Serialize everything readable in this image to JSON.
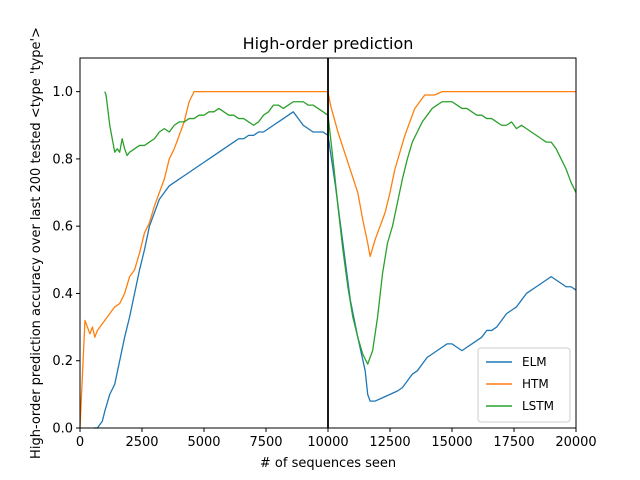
{
  "chart_data": {
    "type": "line",
    "title": "High-order prediction",
    "xlabel": "# of sequences seen",
    "ylabel": "High-order prediction accuracy over last 200 tested <type 'type'>",
    "xlim": [
      0,
      20000
    ],
    "ylim": [
      0,
      1.1
    ],
    "xticks": [
      0,
      2500,
      5000,
      7500,
      10000,
      12500,
      15000,
      17500,
      20000
    ],
    "yticks": [
      0.0,
      0.2,
      0.4,
      0.6,
      0.8,
      1.0
    ],
    "xtick_labels": [
      "0",
      "2500",
      "5000",
      "7500",
      "10000",
      "12500",
      "15000",
      "17500",
      "20000"
    ],
    "ytick_labels": [
      "0.0",
      "0.2",
      "0.4",
      "0.6",
      "0.8",
      "1.0"
    ],
    "grid": false,
    "legend_position": "lower-right",
    "vline_x": 10000,
    "series": [
      {
        "name": "ELM",
        "color": "#1f77b4",
        "points": [
          [
            550,
            0.0
          ],
          [
            700,
            0.0
          ],
          [
            900,
            0.02
          ],
          [
            1000,
            0.05
          ],
          [
            1200,
            0.1
          ],
          [
            1400,
            0.13
          ],
          [
            1600,
            0.2
          ],
          [
            1800,
            0.27
          ],
          [
            2000,
            0.33
          ],
          [
            2200,
            0.4
          ],
          [
            2400,
            0.47
          ],
          [
            2600,
            0.53
          ],
          [
            2800,
            0.6
          ],
          [
            3000,
            0.64
          ],
          [
            3200,
            0.68
          ],
          [
            3400,
            0.7
          ],
          [
            3600,
            0.72
          ],
          [
            3800,
            0.73
          ],
          [
            4000,
            0.74
          ],
          [
            4200,
            0.75
          ],
          [
            4400,
            0.76
          ],
          [
            4600,
            0.77
          ],
          [
            4800,
            0.78
          ],
          [
            5000,
            0.79
          ],
          [
            5200,
            0.8
          ],
          [
            5400,
            0.81
          ],
          [
            5600,
            0.82
          ],
          [
            5800,
            0.83
          ],
          [
            6000,
            0.84
          ],
          [
            6200,
            0.85
          ],
          [
            6400,
            0.86
          ],
          [
            6600,
            0.86
          ],
          [
            6800,
            0.87
          ],
          [
            7000,
            0.87
          ],
          [
            7200,
            0.88
          ],
          [
            7400,
            0.88
          ],
          [
            7600,
            0.89
          ],
          [
            7800,
            0.9
          ],
          [
            8000,
            0.91
          ],
          [
            8200,
            0.92
          ],
          [
            8400,
            0.93
          ],
          [
            8600,
            0.94
          ],
          [
            8800,
            0.92
          ],
          [
            9000,
            0.9
          ],
          [
            9200,
            0.89
          ],
          [
            9400,
            0.88
          ],
          [
            9600,
            0.88
          ],
          [
            9800,
            0.88
          ],
          [
            10000,
            0.87
          ],
          [
            10300,
            0.72
          ],
          [
            10600,
            0.55
          ],
          [
            10900,
            0.38
          ],
          [
            11200,
            0.27
          ],
          [
            11500,
            0.17
          ],
          [
            11600,
            0.1
          ],
          [
            11700,
            0.08
          ],
          [
            11900,
            0.08
          ],
          [
            12200,
            0.09
          ],
          [
            12500,
            0.1
          ],
          [
            12800,
            0.11
          ],
          [
            13000,
            0.12
          ],
          [
            13200,
            0.14
          ],
          [
            13400,
            0.16
          ],
          [
            13600,
            0.17
          ],
          [
            13800,
            0.19
          ],
          [
            14000,
            0.21
          ],
          [
            14200,
            0.22
          ],
          [
            14400,
            0.23
          ],
          [
            14600,
            0.24
          ],
          [
            14800,
            0.25
          ],
          [
            15000,
            0.25
          ],
          [
            15200,
            0.24
          ],
          [
            15400,
            0.23
          ],
          [
            15600,
            0.24
          ],
          [
            15800,
            0.25
          ],
          [
            16000,
            0.26
          ],
          [
            16200,
            0.27
          ],
          [
            16400,
            0.29
          ],
          [
            16600,
            0.29
          ],
          [
            16800,
            0.3
          ],
          [
            17000,
            0.32
          ],
          [
            17200,
            0.34
          ],
          [
            17400,
            0.35
          ],
          [
            17600,
            0.36
          ],
          [
            17800,
            0.38
          ],
          [
            18000,
            0.4
          ],
          [
            18200,
            0.41
          ],
          [
            18400,
            0.42
          ],
          [
            18600,
            0.43
          ],
          [
            18800,
            0.44
          ],
          [
            19000,
            0.45
          ],
          [
            19200,
            0.44
          ],
          [
            19400,
            0.43
          ],
          [
            19600,
            0.42
          ],
          [
            19800,
            0.42
          ],
          [
            20000,
            0.41
          ]
        ]
      },
      {
        "name": "HTM",
        "color": "#ff7f0e",
        "points": [
          [
            0,
            0.0
          ],
          [
            100,
            0.16
          ],
          [
            200,
            0.32
          ],
          [
            300,
            0.3
          ],
          [
            400,
            0.28
          ],
          [
            500,
            0.3
          ],
          [
            600,
            0.27
          ],
          [
            700,
            0.29
          ],
          [
            800,
            0.3
          ],
          [
            1000,
            0.32
          ],
          [
            1200,
            0.34
          ],
          [
            1400,
            0.36
          ],
          [
            1600,
            0.37
          ],
          [
            1800,
            0.4
          ],
          [
            2000,
            0.45
          ],
          [
            2200,
            0.47
          ],
          [
            2400,
            0.52
          ],
          [
            2600,
            0.58
          ],
          [
            2800,
            0.61
          ],
          [
            3000,
            0.66
          ],
          [
            3200,
            0.7
          ],
          [
            3400,
            0.74
          ],
          [
            3600,
            0.8
          ],
          [
            3800,
            0.83
          ],
          [
            4000,
            0.87
          ],
          [
            4200,
            0.91
          ],
          [
            4400,
            0.97
          ],
          [
            4600,
            1.0
          ],
          [
            6000,
            1.0
          ],
          [
            8000,
            1.0
          ],
          [
            10000,
            1.0
          ],
          [
            10100,
            0.96
          ],
          [
            10400,
            0.88
          ],
          [
            10800,
            0.79
          ],
          [
            11200,
            0.7
          ],
          [
            11400,
            0.62
          ],
          [
            11600,
            0.55
          ],
          [
            11700,
            0.51
          ],
          [
            11900,
            0.56
          ],
          [
            12100,
            0.6
          ],
          [
            12300,
            0.64
          ],
          [
            12500,
            0.7
          ],
          [
            12700,
            0.77
          ],
          [
            12900,
            0.82
          ],
          [
            13100,
            0.87
          ],
          [
            13300,
            0.91
          ],
          [
            13500,
            0.95
          ],
          [
            13700,
            0.97
          ],
          [
            13900,
            0.99
          ],
          [
            14100,
            0.99
          ],
          [
            14300,
            0.99
          ],
          [
            14600,
            1.0
          ],
          [
            16000,
            1.0
          ],
          [
            18000,
            1.0
          ],
          [
            20000,
            1.0
          ]
        ]
      },
      {
        "name": "LSTM",
        "color": "#2ca02c",
        "points": [
          [
            1000,
            1.0
          ],
          [
            1050,
            0.99
          ],
          [
            1100,
            0.96
          ],
          [
            1150,
            0.93
          ],
          [
            1200,
            0.9
          ],
          [
            1300,
            0.86
          ],
          [
            1400,
            0.82
          ],
          [
            1500,
            0.83
          ],
          [
            1600,
            0.82
          ],
          [
            1700,
            0.86
          ],
          [
            1800,
            0.83
          ],
          [
            1900,
            0.81
          ],
          [
            2000,
            0.82
          ],
          [
            2200,
            0.83
          ],
          [
            2400,
            0.84
          ],
          [
            2600,
            0.84
          ],
          [
            2800,
            0.85
          ],
          [
            3000,
            0.86
          ],
          [
            3200,
            0.88
          ],
          [
            3400,
            0.89
          ],
          [
            3600,
            0.88
          ],
          [
            3800,
            0.9
          ],
          [
            4000,
            0.91
          ],
          [
            4200,
            0.91
          ],
          [
            4400,
            0.92
          ],
          [
            4600,
            0.92
          ],
          [
            4800,
            0.93
          ],
          [
            5000,
            0.93
          ],
          [
            5200,
            0.94
          ],
          [
            5400,
            0.94
          ],
          [
            5600,
            0.95
          ],
          [
            5800,
            0.94
          ],
          [
            6000,
            0.93
          ],
          [
            6200,
            0.93
          ],
          [
            6400,
            0.92
          ],
          [
            6600,
            0.92
          ],
          [
            6800,
            0.91
          ],
          [
            7000,
            0.9
          ],
          [
            7200,
            0.91
          ],
          [
            7400,
            0.93
          ],
          [
            7600,
            0.94
          ],
          [
            7800,
            0.96
          ],
          [
            8000,
            0.96
          ],
          [
            8200,
            0.95
          ],
          [
            8400,
            0.96
          ],
          [
            8600,
            0.97
          ],
          [
            8800,
            0.97
          ],
          [
            9000,
            0.97
          ],
          [
            9200,
            0.96
          ],
          [
            9400,
            0.96
          ],
          [
            9600,
            0.95
          ],
          [
            9800,
            0.94
          ],
          [
            10000,
            0.93
          ],
          [
            10200,
            0.8
          ],
          [
            10400,
            0.66
          ],
          [
            10600,
            0.53
          ],
          [
            10800,
            0.42
          ],
          [
            11000,
            0.33
          ],
          [
            11200,
            0.27
          ],
          [
            11400,
            0.22
          ],
          [
            11600,
            0.19
          ],
          [
            11800,
            0.23
          ],
          [
            12000,
            0.33
          ],
          [
            12200,
            0.46
          ],
          [
            12400,
            0.55
          ],
          [
            12600,
            0.6
          ],
          [
            12800,
            0.67
          ],
          [
            13000,
            0.74
          ],
          [
            13200,
            0.8
          ],
          [
            13400,
            0.85
          ],
          [
            13600,
            0.88
          ],
          [
            13800,
            0.91
          ],
          [
            14000,
            0.93
          ],
          [
            14200,
            0.95
          ],
          [
            14400,
            0.96
          ],
          [
            14600,
            0.97
          ],
          [
            14800,
            0.97
          ],
          [
            15000,
            0.97
          ],
          [
            15200,
            0.96
          ],
          [
            15400,
            0.95
          ],
          [
            15600,
            0.95
          ],
          [
            15800,
            0.94
          ],
          [
            16000,
            0.93
          ],
          [
            16200,
            0.93
          ],
          [
            16400,
            0.92
          ],
          [
            16600,
            0.92
          ],
          [
            16800,
            0.91
          ],
          [
            17000,
            0.9
          ],
          [
            17200,
            0.9
          ],
          [
            17400,
            0.91
          ],
          [
            17600,
            0.89
          ],
          [
            17800,
            0.9
          ],
          [
            18000,
            0.89
          ],
          [
            18200,
            0.88
          ],
          [
            18400,
            0.87
          ],
          [
            18600,
            0.86
          ],
          [
            18800,
            0.85
          ],
          [
            19000,
            0.85
          ],
          [
            19200,
            0.83
          ],
          [
            19400,
            0.8
          ],
          [
            19600,
            0.77
          ],
          [
            19800,
            0.73
          ],
          [
            20000,
            0.7
          ]
        ]
      }
    ]
  }
}
